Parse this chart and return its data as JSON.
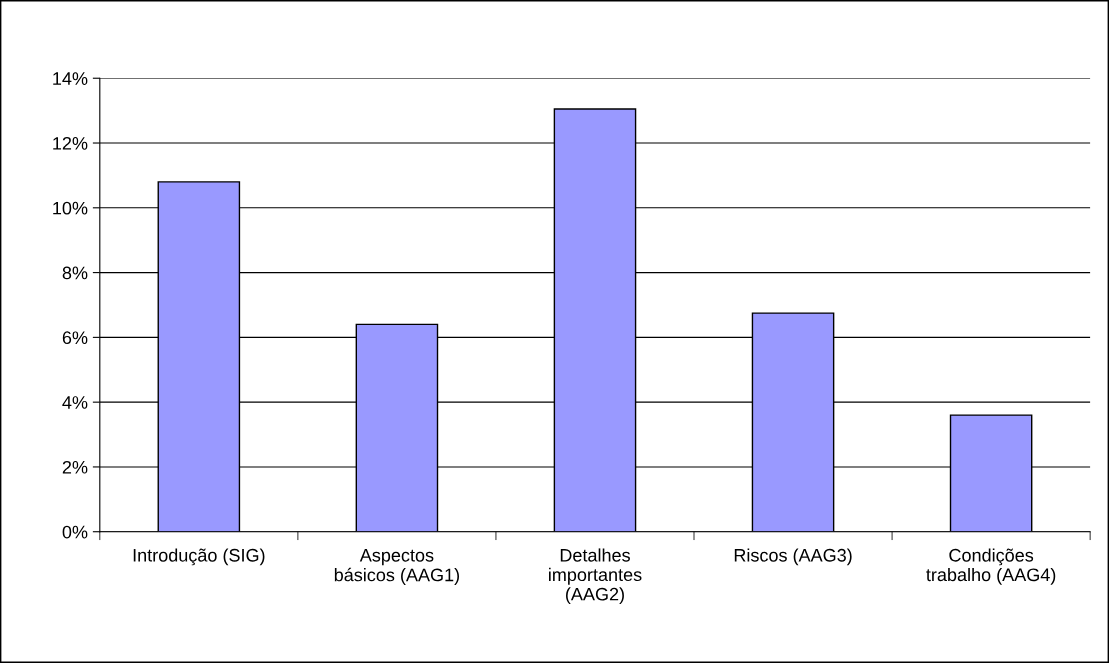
{
  "chart_data": {
    "type": "bar",
    "categories": [
      "Introdução (SIG)",
      "Aspectos\nbásicos (AAG1)",
      "Detalhes\nimportantes\n(AAG2)",
      "Riscos (AAG3)",
      "Condições\ntrabalho (AAG4)"
    ],
    "values": [
      10.8,
      6.4,
      13.05,
      6.75,
      3.6
    ],
    "color": "#9999ff",
    "ylim": [
      0,
      14
    ],
    "yticks": [
      {
        "value": 0,
        "label": "0%"
      },
      {
        "value": 2,
        "label": "2%"
      },
      {
        "value": 4,
        "label": "4%"
      },
      {
        "value": 6,
        "label": "6%"
      },
      {
        "value": 8,
        "label": "8%"
      },
      {
        "value": 10,
        "label": "10%"
      },
      {
        "value": 12,
        "label": "12%"
      },
      {
        "value": 14,
        "label": "14%"
      }
    ],
    "grid": "y"
  }
}
